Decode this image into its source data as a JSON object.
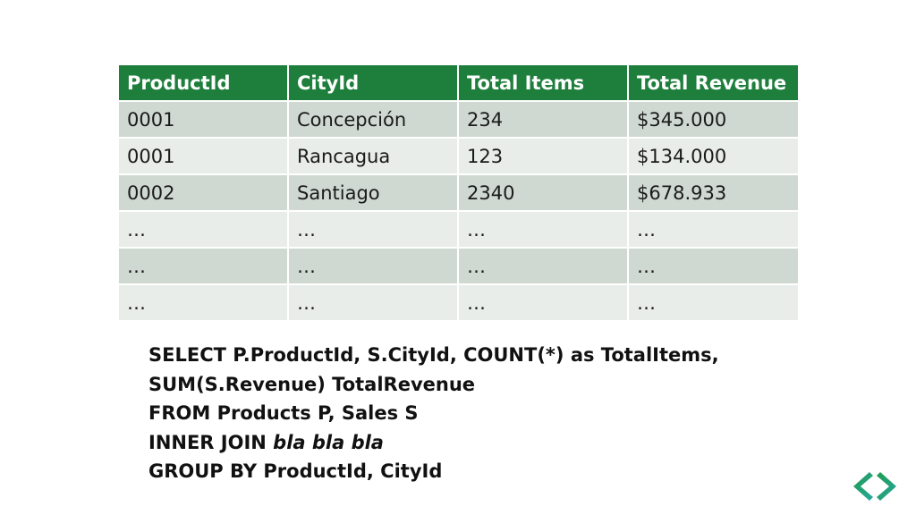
{
  "table": {
    "headers": [
      "ProductId",
      "CityId",
      "Total Items",
      "Total Revenue"
    ],
    "rows": [
      [
        "0001",
        "Concepción",
        "234",
        "$345.000"
      ],
      [
        "0001",
        "Rancagua",
        "123",
        "$134.000"
      ],
      [
        "0002",
        "Santiago",
        "2340",
        "$678.933"
      ],
      [
        "…",
        "…",
        "…",
        "…"
      ],
      [
        "…",
        "…",
        "…",
        "…"
      ],
      [
        "…",
        "…",
        "…",
        "…"
      ]
    ]
  },
  "sql": {
    "line1": "SELECT P.ProductId, S.CityId, COUNT(*) as TotalItems,",
    "line2": "SUM(S.Revenue) TotalRevenue",
    "line3": "FROM Products P, Sales S",
    "line4_prefix": "INNER JOIN ",
    "line4_italic": "bla bla bla",
    "line5": "GROUP BY ProductId, CityId"
  },
  "colors": {
    "header_bg": "#1e7f3c",
    "row_odd_bg": "#cfd9d1",
    "row_even_bg": "#e8ede9",
    "logo_green": "#1e9c4e",
    "logo_teal": "#2aa7a0"
  },
  "icons": {
    "logo": "angle-brackets-logo-icon"
  }
}
